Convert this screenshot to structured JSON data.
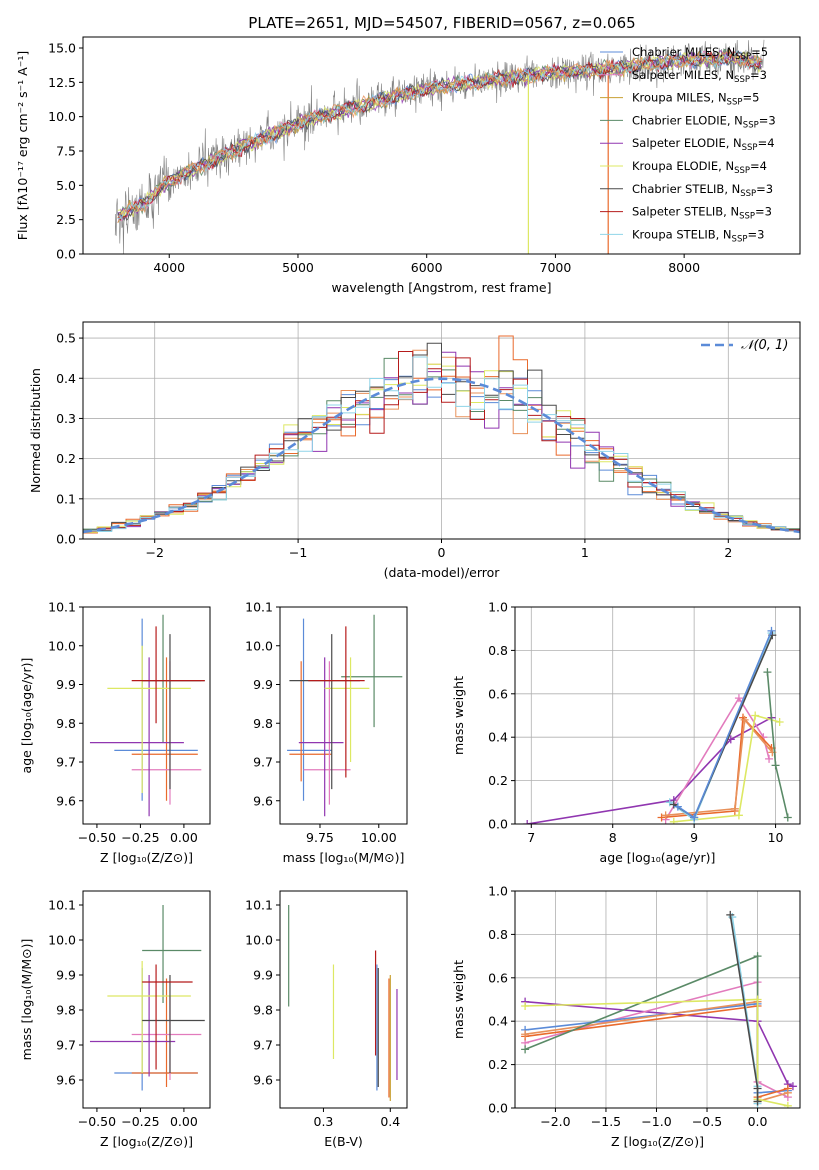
{
  "figure_title": "PLATE=2651, MJD=54507, FIBERID=0567, z=0.065",
  "colors": {
    "c1": "#5b8bd8",
    "c2": "#e8915a",
    "c3": "#e96a2c",
    "c4": "#5a8a67",
    "c5": "#9036b0",
    "c6": "#dde863",
    "c7": "#4a4a4a",
    "c8": "#b51b1b",
    "c9": "#8fd4e8",
    "pink": "#e27bbd",
    "gold": "#c8a032",
    "data": "#808080"
  },
  "chart_data": [
    {
      "id": "spectrum",
      "type": "line",
      "title": "PLATE=2651, MJD=54507, FIBERID=0567, z=0.065",
      "xlabel": "wavelength [Angstrom, rest frame]",
      "ylabel": "Flux [fλ10⁻¹⁷ erg cm⁻² s⁻¹ A⁻¹]",
      "xlim": [
        3330,
        8900
      ],
      "ylim": [
        0,
        15.8
      ],
      "xticks": [
        4000,
        5000,
        6000,
        7000,
        8000
      ],
      "yticks": [
        0.0,
        2.5,
        5.0,
        7.5,
        10.0,
        12.5,
        15.0
      ],
      "ytick_labels": [
        "0.0",
        "2.5",
        "5.0",
        "7.5",
        "10.0",
        "12.5",
        "15.0"
      ],
      "grid": false,
      "legend_position": "right",
      "legend": [
        {
          "label": "Chabrier MILES, N",
          "sub": "SSP",
          "suffix": "=5",
          "color": "#5b8bd8"
        },
        {
          "label": "Salpeter MILES, N",
          "sub": "SSP",
          "suffix": "=3",
          "color": "#e27bbd"
        },
        {
          "label": "Kroupa MILES, N",
          "sub": "SSP",
          "suffix": "=5",
          "color": "#c8a032"
        },
        {
          "label": "Chabrier ELODIE, N",
          "sub": "SSP",
          "suffix": "=3",
          "color": "#5a8a67"
        },
        {
          "label": "Salpeter ELODIE, N",
          "sub": "SSP",
          "suffix": "=4",
          "color": "#9036b0"
        },
        {
          "label": "Kroupa ELODIE, N",
          "sub": "SSP",
          "suffix": "=4",
          "color": "#dde863"
        },
        {
          "label": "Chabrier STELIB, N",
          "sub": "SSP",
          "suffix": "=3",
          "color": "#4a4a4a"
        },
        {
          "label": "Salpeter STELIB, N",
          "sub": "SSP",
          "suffix": "=3",
          "color": "#b51b1b"
        },
        {
          "label": "Kroupa STELIB, N",
          "sub": "SSP",
          "suffix": "=3",
          "color": "#8fd4e8"
        }
      ],
      "continuum": {
        "x": [
          3600,
          3700,
          3800,
          3900,
          4000,
          4200,
          4400,
          4600,
          4800,
          5000,
          5200,
          5400,
          5600,
          5800,
          6000,
          6200,
          6400,
          6600,
          6800,
          7000,
          7200,
          7400,
          7600,
          7800,
          8000,
          8200,
          8400,
          8600
        ],
        "y": [
          2.8,
          3.2,
          3.6,
          4.5,
          5.3,
          6.2,
          7.1,
          7.9,
          8.7,
          9.5,
          10.1,
          10.6,
          11.1,
          11.6,
          12.0,
          12.3,
          12.5,
          12.8,
          13.0,
          13.2,
          13.3,
          13.5,
          13.7,
          13.9,
          14.1,
          14.2,
          14.3,
          13.8
        ]
      }
    },
    {
      "id": "residuals",
      "type": "histogram",
      "xlabel": "(data-model)/error",
      "ylabel": "Normed distribution",
      "xlim": [
        -2.5,
        2.5
      ],
      "ylim": [
        0,
        0.54
      ],
      "xticks": [
        -2,
        -1,
        0,
        1,
        2
      ],
      "xtick_labels": [
        "−2",
        "−1",
        "0",
        "1",
        "2"
      ],
      "yticks": [
        0.0,
        0.1,
        0.2,
        0.3,
        0.4,
        0.5
      ],
      "ytick_labels": [
        "0.0",
        "0.1",
        "0.2",
        "0.3",
        "0.4",
        "0.5"
      ],
      "grid": true,
      "legend": [
        {
          "label": "𝒩(0, 1)",
          "color": "#5b8bd8",
          "style": "dashed"
        }
      ],
      "bin_width": 0.1
    },
    {
      "id": "age-vs-Z",
      "type": "errorbar",
      "xlabel": "Z [log₁₀(Z/Z⊙)]",
      "ylabel": "age  [log₁₀(age/yr)]",
      "xlim": [
        -0.58,
        0.15
      ],
      "ylim": [
        9.54,
        10.1
      ],
      "xticks": [
        -0.5,
        -0.25,
        0.0
      ],
      "xtick_labels": [
        "−0.50",
        "−0.25",
        "0.00"
      ],
      "yticks": [
        9.6,
        9.7,
        9.8,
        9.9,
        10.0,
        10.1
      ],
      "ytick_labels": [
        "9.6",
        "9.7",
        "9.8",
        "9.9",
        "10.0",
        "10.1"
      ],
      "points": [
        {
          "x": -0.24,
          "y": 9.73,
          "xe": [
            -0.4,
            0.08
          ],
          "ye": [
            9.6,
            10.07
          ],
          "c": "c1"
        },
        {
          "x": -0.12,
          "y": 9.91,
          "xe": [
            -0.24,
            0.1
          ],
          "ye": [
            9.75,
            10.08
          ],
          "c": "c4"
        },
        {
          "x": -0.1,
          "y": 9.72,
          "xe": [
            -0.3,
            0.08
          ],
          "ye": [
            9.6,
            9.97
          ],
          "c": "c3"
        },
        {
          "x": -0.08,
          "y": 9.68,
          "xe": [
            -0.3,
            0.1
          ],
          "ye": [
            9.59,
            9.96
          ],
          "c": "pink"
        },
        {
          "x": -0.2,
          "y": 9.75,
          "xe": [
            -0.54,
            0.0
          ],
          "ye": [
            9.56,
            9.97
          ],
          "c": "c5"
        },
        {
          "x": -0.24,
          "y": 9.89,
          "xe": [
            -0.44,
            0.04
          ],
          "ye": [
            9.62,
            10.0
          ],
          "c": "c6"
        },
        {
          "x": -0.08,
          "y": 9.91,
          "xe": [
            -0.24,
            0.12
          ],
          "ye": [
            9.63,
            10.03
          ],
          "c": "c7"
        },
        {
          "x": -0.16,
          "y": 9.91,
          "xe": [
            -0.3,
            0.12
          ],
          "ye": [
            9.8,
            10.05
          ],
          "c": "c8"
        }
      ]
    },
    {
      "id": "age-vs-mass",
      "type": "errorbar",
      "xlabel": "mass [log₁₀(M/M⊙)]",
      "ylabel": "",
      "xlim": [
        9.58,
        10.12
      ],
      "ylim": [
        9.54,
        10.1
      ],
      "xticks": [
        9.75,
        10.0
      ],
      "xtick_labels": [
        "9.75",
        "10.00"
      ],
      "yticks": [
        9.6,
        9.7,
        9.8,
        9.9,
        10.0,
        10.1
      ],
      "ytick_labels": [
        "9.6",
        "9.7",
        "9.8",
        "9.9",
        "10.0",
        "10.1"
      ],
      "points": [
        {
          "x": 9.68,
          "y": 9.73,
          "xe": [
            9.61,
            9.8
          ],
          "ye": [
            9.6,
            10.07
          ],
          "c": "c1"
        },
        {
          "x": 9.98,
          "y": 9.92,
          "xe": [
            9.84,
            10.1
          ],
          "ye": [
            9.79,
            10.08
          ],
          "c": "c4"
        },
        {
          "x": 9.67,
          "y": 9.72,
          "xe": [
            9.62,
            9.8
          ],
          "ye": [
            9.65,
            9.96
          ],
          "c": "c3"
        },
        {
          "x": 9.79,
          "y": 9.68,
          "xe": [
            9.68,
            9.88
          ],
          "ye": [
            9.59,
            9.96
          ],
          "c": "pink"
        },
        {
          "x": 9.77,
          "y": 9.75,
          "xe": [
            9.66,
            9.85
          ],
          "ye": [
            9.56,
            9.97
          ],
          "c": "c5"
        },
        {
          "x": 9.88,
          "y": 9.89,
          "xe": [
            9.77,
            9.96
          ],
          "ye": [
            9.7,
            9.97
          ],
          "c": "c6"
        },
        {
          "x": 9.8,
          "y": 9.91,
          "xe": [
            9.62,
            9.92
          ],
          "ye": [
            9.63,
            10.03
          ],
          "c": "c7"
        },
        {
          "x": 9.86,
          "y": 9.91,
          "xe": [
            9.7,
            9.94
          ],
          "ye": [
            9.66,
            10.05
          ],
          "c": "c8"
        }
      ]
    },
    {
      "id": "massweight-vs-age",
      "type": "line",
      "xlabel": "age  [log₁₀(age/yr)]",
      "ylabel": "mass weight",
      "xlim": [
        6.8,
        10.3
      ],
      "ylim": [
        0,
        1.0
      ],
      "xticks": [
        7,
        8,
        9,
        10
      ],
      "xtick_labels": [
        "7",
        "8",
        "9",
        "10"
      ],
      "yticks": [
        0.0,
        0.2,
        0.4,
        0.6,
        0.8,
        1.0
      ],
      "ytick_labels": [
        "0.0",
        "0.2",
        "0.4",
        "0.6",
        "0.8",
        "1.0"
      ],
      "grid": true,
      "series": [
        {
          "c": "c5",
          "x": [
            6.95,
            8.75,
            9.45,
            9.95
          ],
          "y": [
            0.0,
            0.11,
            0.39,
            0.49
          ]
        },
        {
          "c": "pink",
          "x": [
            8.65,
            9.55,
            9.85,
            9.92
          ],
          "y": [
            0.02,
            0.58,
            0.4,
            0.3
          ]
        },
        {
          "c": "c3",
          "x": [
            8.6,
            9.5,
            9.6,
            9.95
          ],
          "y": [
            0.03,
            0.06,
            0.49,
            0.35
          ]
        },
        {
          "c": "c2",
          "x": [
            8.65,
            9.5,
            9.62,
            9.96
          ],
          "y": [
            0.04,
            0.07,
            0.48,
            0.33
          ]
        },
        {
          "c": "c6",
          "x": [
            8.75,
            9.55,
            9.75,
            10.05
          ],
          "y": [
            0.01,
            0.04,
            0.5,
            0.47
          ]
        },
        {
          "c": "c4",
          "x": [
            9.9,
            10.0,
            10.15
          ],
          "y": [
            0.7,
            0.27,
            0.03
          ]
        },
        {
          "c": "c9",
          "x": [
            8.7,
            9.0,
            9.95
          ],
          "y": [
            0.1,
            0.02,
            0.88
          ]
        },
        {
          "c": "c7",
          "x": [
            8.75,
            9.0,
            9.96
          ],
          "y": [
            0.09,
            0.03,
            0.87
          ]
        },
        {
          "c": "c1",
          "x": [
            8.8,
            9.0,
            9.95
          ],
          "y": [
            0.08,
            0.03,
            0.89
          ]
        }
      ]
    },
    {
      "id": "mass-vs-Z",
      "type": "errorbar",
      "xlabel": "Z [log₁₀(Z/Z⊙)]",
      "ylabel": "mass [log₁₀(M/M⊙)]",
      "xlim": [
        -0.58,
        0.15
      ],
      "ylim": [
        9.52,
        10.14
      ],
      "xticks": [
        -0.5,
        -0.25,
        0.0
      ],
      "xtick_labels": [
        "−0.50",
        "−0.25",
        "0.00"
      ],
      "yticks": [
        9.6,
        9.7,
        9.8,
        9.9,
        10.0,
        10.1
      ],
      "ytick_labels": [
        "9.6",
        "9.7",
        "9.8",
        "9.9",
        "10.0",
        "10.1"
      ],
      "points": [
        {
          "x": -0.24,
          "y": 9.62,
          "xe": [
            -0.4,
            0.08
          ],
          "ye": [
            9.57,
            9.92
          ],
          "c": "c1"
        },
        {
          "x": -0.12,
          "y": 9.97,
          "xe": [
            -0.24,
            0.1
          ],
          "ye": [
            9.82,
            10.1
          ],
          "c": "c4"
        },
        {
          "x": -0.1,
          "y": 9.62,
          "xe": [
            -0.3,
            0.08
          ],
          "ye": [
            9.58,
            9.89
          ],
          "c": "c3"
        },
        {
          "x": -0.08,
          "y": 9.73,
          "xe": [
            -0.3,
            0.1
          ],
          "ye": [
            9.6,
            9.84
          ],
          "c": "pink"
        },
        {
          "x": -0.2,
          "y": 9.71,
          "xe": [
            -0.54,
            -0.05
          ],
          "ye": [
            9.61,
            9.9
          ],
          "c": "c5"
        },
        {
          "x": -0.24,
          "y": 9.84,
          "xe": [
            -0.44,
            0.04
          ],
          "ye": [
            9.62,
            9.94
          ],
          "c": "c6"
        },
        {
          "x": -0.08,
          "y": 9.77,
          "xe": [
            -0.24,
            0.12
          ],
          "ye": [
            9.62,
            9.9
          ],
          "c": "c7"
        },
        {
          "x": -0.16,
          "y": 9.88,
          "xe": [
            -0.24,
            0.05
          ],
          "ye": [
            9.63,
            9.93
          ],
          "c": "c8"
        }
      ]
    },
    {
      "id": "mass-vs-EBV",
      "type": "errorbar",
      "xlabel": "E(B-V)",
      "ylabel": "",
      "xlim": [
        0.235,
        0.425
      ],
      "ylim": [
        9.52,
        10.14
      ],
      "xticks": [
        0.3,
        0.4
      ],
      "xtick_labels": [
        "0.3",
        "0.4"
      ],
      "yticks": [
        9.6,
        9.7,
        9.8,
        9.9,
        10.0,
        10.1
      ],
      "ytick_labels": [
        "9.6",
        "9.7",
        "9.8",
        "9.9",
        "10.0",
        "10.1"
      ],
      "points": [
        {
          "x": 0.248,
          "y": 9.97,
          "ye": [
            9.81,
            10.1
          ],
          "c": "c4"
        },
        {
          "x": 0.315,
          "y": 9.8,
          "ye": [
            9.66,
            9.93
          ],
          "c": "c6"
        },
        {
          "x": 0.378,
          "y": 9.82,
          "ye": [
            9.67,
            9.97
          ],
          "c": "c8"
        },
        {
          "x": 0.38,
          "y": 9.75,
          "ye": [
            9.57,
            9.93
          ],
          "c": "c1"
        },
        {
          "x": 0.382,
          "y": 9.78,
          "ye": [
            9.58,
            9.92
          ],
          "c": "c7"
        },
        {
          "x": 0.398,
          "y": 9.72,
          "ye": [
            9.55,
            9.89
          ],
          "c": "c3"
        },
        {
          "x": 0.4,
          "y": 9.74,
          "ye": [
            9.54,
            9.9
          ],
          "c": "gold"
        },
        {
          "x": 0.41,
          "y": 9.72,
          "ye": [
            9.6,
            9.86
          ],
          "c": "c5"
        }
      ]
    },
    {
      "id": "massweight-vs-Z",
      "type": "line",
      "xlabel": "Z [log₁₀(Z/Z⊙)]",
      "ylabel": "mass weight",
      "xlim": [
        -2.4,
        0.42
      ],
      "ylim": [
        0,
        1.0
      ],
      "xticks": [
        -2.0,
        -1.5,
        -1.0,
        -0.5,
        0.0
      ],
      "xtick_labels": [
        "−2.0",
        "−1.5",
        "−1.0",
        "−0.5",
        "0.0"
      ],
      "yticks": [
        0.0,
        0.2,
        0.4,
        0.6,
        0.8,
        1.0
      ],
      "ytick_labels": [
        "0.0",
        "0.2",
        "0.4",
        "0.6",
        "0.8",
        "1.0"
      ],
      "grid": true,
      "series": [
        {
          "c": "c5",
          "x": [
            -2.3,
            0.0,
            0.3,
            0.35
          ],
          "y": [
            0.49,
            0.4,
            0.11,
            0.1
          ]
        },
        {
          "c": "pink",
          "x": [
            -2.3,
            0.0,
            0.0,
            0.3
          ],
          "y": [
            0.3,
            0.58,
            0.12,
            0.05
          ]
        },
        {
          "c": "c1",
          "x": [
            -2.3,
            0.0,
            0.0,
            0.3
          ],
          "y": [
            0.36,
            0.48,
            0.07,
            0.08
          ]
        },
        {
          "c": "c3",
          "x": [
            -2.3,
            0.0,
            0.0,
            0.3
          ],
          "y": [
            0.33,
            0.47,
            0.05,
            0.09
          ]
        },
        {
          "c": "c2",
          "x": [
            -2.3,
            0.0,
            0.0,
            0.3
          ],
          "y": [
            0.34,
            0.49,
            0.03,
            0.07
          ]
        },
        {
          "c": "c4",
          "x": [
            -2.3,
            0.0,
            0.0
          ],
          "y": [
            0.27,
            0.7,
            0.03
          ]
        },
        {
          "c": "c6",
          "x": [
            -2.3,
            0.0,
            0.0,
            0.3
          ],
          "y": [
            0.47,
            0.5,
            0.04,
            0.01
          ]
        },
        {
          "c": "c9",
          "x": [
            -0.25,
            0.0,
            0.0
          ],
          "y": [
            0.88,
            0.1,
            0.02
          ]
        },
        {
          "c": "c7",
          "x": [
            -0.27,
            0.0,
            0.0
          ],
          "y": [
            0.89,
            0.09,
            0.03
          ]
        }
      ]
    }
  ]
}
